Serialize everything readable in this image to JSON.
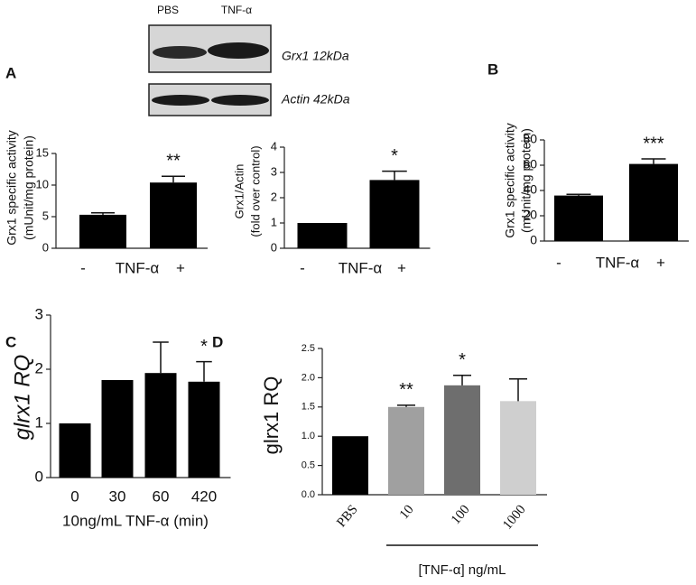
{
  "panel_labels": [
    "A",
    "B",
    "C",
    "D"
  ],
  "blot": {
    "lanes": [
      "PBS",
      "TNF-α"
    ],
    "bands": [
      "Grx1 12kDa",
      "Actin 42kDa"
    ]
  },
  "chart_data": [
    {
      "type": "bar",
      "ylabel": [
        "Grx1 specific activity",
        "(mUnit/mg protein)"
      ],
      "xlabel": "TNF-α",
      "categories": [
        "-",
        "+"
      ],
      "values": [
        5.3,
        10.4
      ],
      "errors": [
        0.3,
        1.0
      ],
      "annotations": [
        null,
        "**"
      ],
      "color": "#000000",
      "ylim": [
        0,
        15
      ],
      "yticks": [
        0,
        5,
        10,
        15
      ]
    },
    {
      "type": "bar",
      "ylabel": [
        "Grx1/Actin",
        "(fold over control)"
      ],
      "xlabel": "TNF-α",
      "categories": [
        "-",
        "+"
      ],
      "values": [
        1.0,
        2.7
      ],
      "errors": [
        0,
        0.35
      ],
      "annotations": [
        null,
        "*"
      ],
      "color": "#000000",
      "ylim": [
        0,
        4
      ],
      "yticks": [
        0,
        1,
        2,
        3,
        4
      ]
    },
    {
      "type": "bar",
      "ylabel": [
        "Grx1 specific activity",
        "(mUnit/mg protein)"
      ],
      "xlabel": "TNF-α",
      "categories": [
        "-",
        "+"
      ],
      "values": [
        36,
        61
      ],
      "errors": [
        1,
        4
      ],
      "annotations": [
        null,
        "***"
      ],
      "color": "#000000",
      "ylim": [
        0,
        80
      ],
      "yticks": [
        0,
        20,
        40,
        60,
        80
      ]
    },
    {
      "type": "bar",
      "ylabel": [
        "glrx1 RQ"
      ],
      "xlabel": "10ng/mL TNF-α (min)",
      "categories": [
        "0",
        "30",
        "60",
        "420"
      ],
      "values": [
        1.0,
        1.8,
        1.93,
        1.77
      ],
      "errors": [
        0,
        0,
        0.57,
        0.37
      ],
      "annotations": [
        null,
        null,
        null,
        "*"
      ],
      "color": "#000000",
      "ylim": [
        0,
        3
      ],
      "yticks": [
        0,
        1,
        2,
        3
      ]
    },
    {
      "type": "bar",
      "ylabel": [
        "glrx1 RQ"
      ],
      "xlabel": "[TNF-α] ng/mL",
      "categories": [
        "PBS",
        "10",
        "100",
        "1000"
      ],
      "values": [
        1.0,
        1.5,
        1.87,
        1.6
      ],
      "errors": [
        0,
        0.03,
        0.17,
        0.38
      ],
      "annotations": [
        null,
        "**",
        "*",
        null
      ],
      "colors": [
        "#000000",
        "#a0a0a0",
        "#6e6e6e",
        "#cfcfcf"
      ],
      "ylim": [
        0,
        2.5
      ],
      "yticks": [
        {
          "value": 0,
          "label": "0.0"
        },
        {
          "value": 0.5,
          "label": "0.5"
        },
        {
          "value": 1,
          "label": "1.0"
        },
        {
          "value": 1.5,
          "label": "1.5"
        },
        {
          "value": 2,
          "label": "2.0"
        },
        {
          "value": 2.5,
          "label": "2.5"
        }
      ]
    }
  ]
}
